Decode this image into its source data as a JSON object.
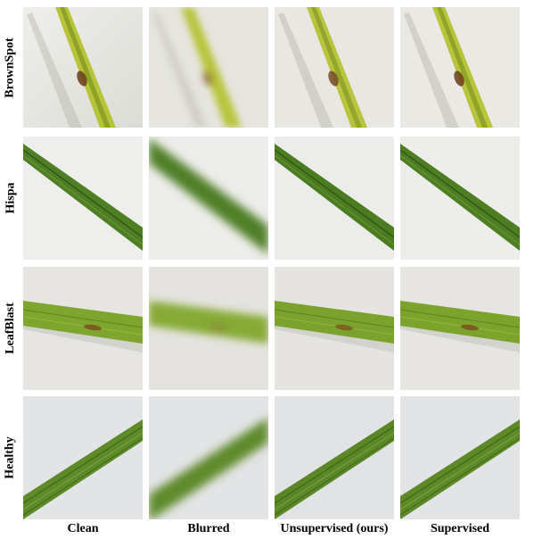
{
  "rows": [
    {
      "label": "BrownSpot"
    },
    {
      "label": "Hispa"
    },
    {
      "label": "LeafBlast"
    },
    {
      "label": "Healthy"
    }
  ],
  "columns": [
    {
      "label": "Clean"
    },
    {
      "label": "Blurred"
    },
    {
      "label": "Unsupervised (ours)"
    },
    {
      "label": "Supervised"
    }
  ]
}
